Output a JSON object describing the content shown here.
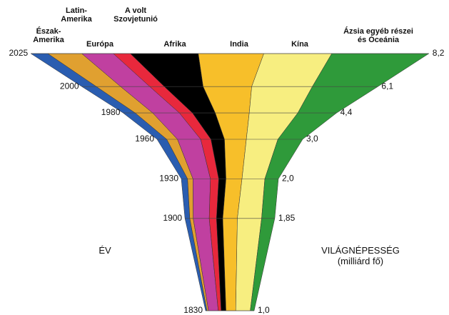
{
  "chart_data": {
    "type": "stacked-funnel",
    "x_label": "ÉV",
    "y_label": "VILÁGNÉPESSÉG",
    "y_unit": "(milliárd fő)",
    "x": [
      1830,
      1900,
      1930,
      1960,
      1980,
      2000,
      2025
    ],
    "xlim": [
      1830,
      2025
    ],
    "totals": [
      1.0,
      1.85,
      2.0,
      3.0,
      4.4,
      6.1,
      8.2
    ],
    "totals_labels": [
      "1,0",
      "1,85",
      "2,0",
      "3,0",
      "4,4",
      "6,1",
      "8,2"
    ],
    "series": [
      {
        "name": "Észak-Amerika",
        "color": "#2a5db0",
        "values": [
          0.03,
          0.1,
          0.13,
          0.2,
          0.25,
          0.3,
          0.35
        ]
      },
      {
        "name": "Latin-Amerika",
        "color": "#e0a030",
        "values": [
          0.03,
          0.07,
          0.11,
          0.22,
          0.36,
          0.5,
          0.7
        ]
      },
      {
        "name": "Európa",
        "color": "#c040a0",
        "values": [
          0.2,
          0.33,
          0.36,
          0.48,
          0.55,
          0.6,
          0.65
        ]
      },
      {
        "name": "A volt Szovjetunió",
        "color": "#e8283c",
        "values": [
          0.06,
          0.15,
          0.17,
          0.21,
          0.27,
          0.3,
          0.35
        ]
      },
      {
        "name": "Afrika",
        "color": "#000000",
        "values": [
          0.1,
          0.13,
          0.15,
          0.28,
          0.47,
          0.8,
          1.4
        ]
      },
      {
        "name": "India",
        "color": "#f7bf2a",
        "values": [
          0.2,
          0.3,
          0.33,
          0.45,
          0.7,
          1.0,
          1.35
        ]
      },
      {
        "name": "Kína",
        "color": "#f7ee80",
        "values": [
          0.3,
          0.5,
          0.47,
          0.65,
          1.0,
          1.25,
          1.4
        ]
      },
      {
        "name": "Ázsia egyéb részei és Óceánia",
        "color": "#2f9a3a",
        "values": [
          0.08,
          0.27,
          0.28,
          0.51,
          0.8,
          1.35,
          2.0
        ]
      }
    ]
  }
}
